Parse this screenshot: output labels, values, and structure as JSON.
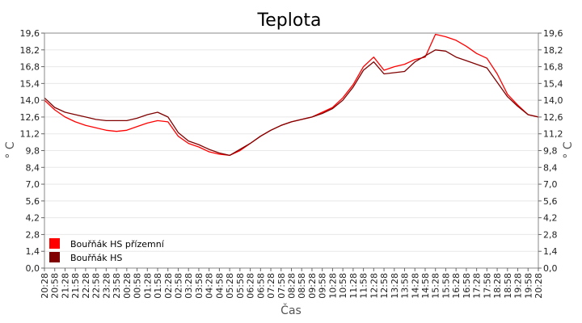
{
  "chart_data": {
    "type": "line",
    "title": "Teplota",
    "xlabel": "Čas",
    "ylabel": "° C",
    "ylim": [
      0,
      19.6
    ],
    "yticks": [
      "19,6",
      "18,2",
      "16,8",
      "15,4",
      "14,0",
      "12,6",
      "11,2",
      "9,8",
      "8,4",
      "7,0",
      "5,6",
      "4,2",
      "2,8",
      "1,4",
      "0,0"
    ],
    "x_categories": [
      "20:28",
      "20:58",
      "21:28",
      "21:58",
      "22:28",
      "22:58",
      "23:28",
      "23:58",
      "00:28",
      "00:58",
      "01:28",
      "01:58",
      "02:28",
      "02:58",
      "03:28",
      "03:58",
      "04:28",
      "04:58",
      "05:28",
      "05:58",
      "06:28",
      "06:58",
      "07:28",
      "07:58",
      "08:28",
      "08:58",
      "09:28",
      "09:58",
      "10:28",
      "10:58",
      "11:28",
      "11:58",
      "12:28",
      "12:58",
      "13:28",
      "13:58",
      "14:28",
      "14:58",
      "15:28",
      "15:58",
      "16:28",
      "16:58",
      "17:28",
      "17:58",
      "18:28",
      "18:58",
      "19:28",
      "19:58",
      "20:28"
    ],
    "grid": true,
    "legend_position": "bottom-left",
    "series": [
      {
        "name": "Bouřňák HS přízemní",
        "color": "#ff0000",
        "values": [
          14.0,
          13.2,
          12.6,
          12.2,
          11.9,
          11.7,
          11.5,
          11.4,
          11.5,
          11.8,
          12.1,
          12.3,
          12.2,
          11.0,
          10.4,
          10.1,
          9.7,
          9.5,
          9.4,
          9.8,
          10.4,
          11.0,
          11.5,
          11.9,
          12.2,
          12.4,
          12.6,
          13.0,
          13.4,
          14.2,
          15.3,
          16.8,
          17.6,
          16.5,
          16.8,
          17.0,
          17.4,
          17.6,
          19.5,
          19.3,
          19.0,
          18.5,
          17.9,
          17.5,
          16.2,
          14.5,
          13.6,
          12.8,
          12.6
        ]
      },
      {
        "name": "Bouřňák HS",
        "color": "#800000",
        "values": [
          14.2,
          13.4,
          13.0,
          12.8,
          12.6,
          12.4,
          12.3,
          12.3,
          12.3,
          12.5,
          12.8,
          13.0,
          12.6,
          11.3,
          10.6,
          10.3,
          9.9,
          9.6,
          9.4,
          9.9,
          10.4,
          11.0,
          11.5,
          11.9,
          12.2,
          12.4,
          12.6,
          12.9,
          13.3,
          14.0,
          15.1,
          16.5,
          17.2,
          16.2,
          16.3,
          16.4,
          17.2,
          17.7,
          18.2,
          18.1,
          17.6,
          17.3,
          17.0,
          16.7,
          15.5,
          14.3,
          13.5,
          12.8,
          12.6
        ]
      }
    ]
  }
}
